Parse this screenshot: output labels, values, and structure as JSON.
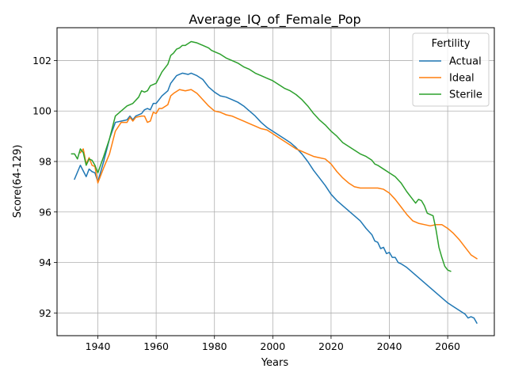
{
  "chart_data": {
    "type": "line",
    "title": "Average_IQ_of_Female_Pop",
    "xlabel": "Years",
    "ylabel": "Score(64-129)",
    "xlim": [
      1926,
      2076
    ],
    "ylim": [
      91.1,
      103.3
    ],
    "xticks": [
      1940,
      1960,
      1980,
      2000,
      2020,
      2040,
      2060
    ],
    "yticks": [
      92,
      94,
      96,
      98,
      100,
      102
    ],
    "grid": true,
    "legend": {
      "title": "Fertility",
      "placement": "top-right"
    },
    "series": [
      {
        "name": "Actual",
        "color": "#1f77b4",
        "points": [
          [
            1932,
            97.3
          ],
          [
            1934,
            97.85
          ],
          [
            1936,
            97.4
          ],
          [
            1937,
            97.7
          ],
          [
            1938,
            97.6
          ],
          [
            1939,
            97.55
          ],
          [
            1940,
            97.2
          ],
          [
            1942,
            98.0
          ],
          [
            1944,
            98.9
          ],
          [
            1946,
            99.55
          ],
          [
            1948,
            99.6
          ],
          [
            1950,
            99.65
          ],
          [
            1951,
            99.8
          ],
          [
            1952,
            99.65
          ],
          [
            1953,
            99.8
          ],
          [
            1955,
            99.9
          ],
          [
            1956,
            100.05
          ],
          [
            1957,
            100.1
          ],
          [
            1958,
            100.05
          ],
          [
            1959,
            100.3
          ],
          [
            1960,
            100.3
          ],
          [
            1962,
            100.6
          ],
          [
            1964,
            100.8
          ],
          [
            1965,
            101.1
          ],
          [
            1966,
            101.25
          ],
          [
            1967,
            101.4
          ],
          [
            1968,
            101.45
          ],
          [
            1969,
            101.5
          ],
          [
            1971,
            101.45
          ],
          [
            1972,
            101.5
          ],
          [
            1974,
            101.4
          ],
          [
            1976,
            101.25
          ],
          [
            1978,
            100.95
          ],
          [
            1980,
            100.75
          ],
          [
            1982,
            100.6
          ],
          [
            1984,
            100.55
          ],
          [
            1986,
            100.45
          ],
          [
            1988,
            100.35
          ],
          [
            1990,
            100.2
          ],
          [
            1992,
            100.0
          ],
          [
            1994,
            99.8
          ],
          [
            1996,
            99.55
          ],
          [
            1998,
            99.35
          ],
          [
            2000,
            99.2
          ],
          [
            2002,
            99.05
          ],
          [
            2004,
            98.9
          ],
          [
            2006,
            98.75
          ],
          [
            2008,
            98.55
          ],
          [
            2010,
            98.3
          ],
          [
            2012,
            98.0
          ],
          [
            2014,
            97.65
          ],
          [
            2016,
            97.35
          ],
          [
            2018,
            97.05
          ],
          [
            2020,
            96.7
          ],
          [
            2022,
            96.45
          ],
          [
            2024,
            96.25
          ],
          [
            2026,
            96.05
          ],
          [
            2028,
            95.85
          ],
          [
            2030,
            95.65
          ],
          [
            2032,
            95.35
          ],
          [
            2034,
            95.1
          ],
          [
            2035,
            94.85
          ],
          [
            2036,
            94.8
          ],
          [
            2037,
            94.55
          ],
          [
            2038,
            94.6
          ],
          [
            2039,
            94.35
          ],
          [
            2040,
            94.4
          ],
          [
            2041,
            94.2
          ],
          [
            2042,
            94.2
          ],
          [
            2043,
            94.0
          ],
          [
            2044,
            93.95
          ],
          [
            2046,
            93.8
          ],
          [
            2048,
            93.6
          ],
          [
            2050,
            93.4
          ],
          [
            2052,
            93.2
          ],
          [
            2054,
            93.0
          ],
          [
            2056,
            92.8
          ],
          [
            2058,
            92.6
          ],
          [
            2060,
            92.4
          ],
          [
            2062,
            92.25
          ],
          [
            2064,
            92.1
          ],
          [
            2066,
            91.95
          ],
          [
            2067,
            91.8
          ],
          [
            2068,
            91.85
          ],
          [
            2069,
            91.8
          ],
          [
            2070,
            91.6
          ]
        ]
      },
      {
        "name": "Ideal",
        "color": "#ff7f0e",
        "points": [
          [
            1934,
            98.35
          ],
          [
            1935,
            98.5
          ],
          [
            1936,
            97.9
          ],
          [
            1937,
            98.15
          ],
          [
            1938,
            97.85
          ],
          [
            1939,
            97.8
          ],
          [
            1940,
            97.15
          ],
          [
            1942,
            97.75
          ],
          [
            1944,
            98.3
          ],
          [
            1946,
            99.2
          ],
          [
            1948,
            99.55
          ],
          [
            1950,
            99.55
          ],
          [
            1951,
            99.75
          ],
          [
            1952,
            99.6
          ],
          [
            1953,
            99.75
          ],
          [
            1955,
            99.8
          ],
          [
            1956,
            99.8
          ],
          [
            1957,
            99.55
          ],
          [
            1958,
            99.6
          ],
          [
            1959,
            99.95
          ],
          [
            1960,
            99.9
          ],
          [
            1961,
            100.1
          ],
          [
            1962,
            100.1
          ],
          [
            1964,
            100.25
          ],
          [
            1965,
            100.6
          ],
          [
            1966,
            100.7
          ],
          [
            1968,
            100.85
          ],
          [
            1970,
            100.8
          ],
          [
            1972,
            100.85
          ],
          [
            1974,
            100.7
          ],
          [
            1976,
            100.45
          ],
          [
            1978,
            100.2
          ],
          [
            1980,
            100.0
          ],
          [
            1982,
            99.95
          ],
          [
            1984,
            99.85
          ],
          [
            1986,
            99.8
          ],
          [
            1988,
            99.7
          ],
          [
            1990,
            99.6
          ],
          [
            1992,
            99.5
          ],
          [
            1994,
            99.4
          ],
          [
            1996,
            99.3
          ],
          [
            1998,
            99.25
          ],
          [
            2000,
            99.1
          ],
          [
            2002,
            98.95
          ],
          [
            2004,
            98.8
          ],
          [
            2006,
            98.65
          ],
          [
            2008,
            98.5
          ],
          [
            2010,
            98.4
          ],
          [
            2012,
            98.3
          ],
          [
            2014,
            98.2
          ],
          [
            2016,
            98.15
          ],
          [
            2018,
            98.1
          ],
          [
            2020,
            97.9
          ],
          [
            2022,
            97.6
          ],
          [
            2024,
            97.35
          ],
          [
            2026,
            97.15
          ],
          [
            2028,
            97.0
          ],
          [
            2030,
            96.95
          ],
          [
            2032,
            96.95
          ],
          [
            2034,
            96.95
          ],
          [
            2036,
            96.95
          ],
          [
            2038,
            96.9
          ],
          [
            2040,
            96.75
          ],
          [
            2042,
            96.5
          ],
          [
            2044,
            96.2
          ],
          [
            2046,
            95.9
          ],
          [
            2048,
            95.65
          ],
          [
            2050,
            95.55
          ],
          [
            2052,
            95.5
          ],
          [
            2054,
            95.45
          ],
          [
            2056,
            95.5
          ],
          [
            2058,
            95.5
          ],
          [
            2060,
            95.35
          ],
          [
            2062,
            95.15
          ],
          [
            2064,
            94.9
          ],
          [
            2066,
            94.6
          ],
          [
            2068,
            94.3
          ],
          [
            2070,
            94.15
          ]
        ]
      },
      {
        "name": "Sterile",
        "color": "#2ca02c",
        "points": [
          [
            1931,
            98.3
          ],
          [
            1932,
            98.3
          ],
          [
            1933,
            98.1
          ],
          [
            1934,
            98.5
          ],
          [
            1935,
            98.35
          ],
          [
            1936,
            97.85
          ],
          [
            1937,
            98.1
          ],
          [
            1938,
            98.05
          ],
          [
            1939,
            97.85
          ],
          [
            1940,
            97.55
          ],
          [
            1942,
            98.2
          ],
          [
            1944,
            98.9
          ],
          [
            1946,
            99.8
          ],
          [
            1948,
            100.0
          ],
          [
            1950,
            100.2
          ],
          [
            1952,
            100.3
          ],
          [
            1954,
            100.55
          ],
          [
            1955,
            100.8
          ],
          [
            1956,
            100.75
          ],
          [
            1957,
            100.8
          ],
          [
            1958,
            101.0
          ],
          [
            1960,
            101.1
          ],
          [
            1962,
            101.55
          ],
          [
            1964,
            101.85
          ],
          [
            1965,
            102.2
          ],
          [
            1966,
            102.3
          ],
          [
            1967,
            102.45
          ],
          [
            1968,
            102.5
          ],
          [
            1969,
            102.6
          ],
          [
            1970,
            102.6
          ],
          [
            1972,
            102.75
          ],
          [
            1974,
            102.7
          ],
          [
            1976,
            102.6
          ],
          [
            1978,
            102.5
          ],
          [
            1979,
            102.4
          ],
          [
            1980,
            102.35
          ],
          [
            1982,
            102.25
          ],
          [
            1984,
            102.1
          ],
          [
            1986,
            102.0
          ],
          [
            1988,
            101.9
          ],
          [
            1990,
            101.75
          ],
          [
            1992,
            101.65
          ],
          [
            1994,
            101.5
          ],
          [
            1996,
            101.4
          ],
          [
            1998,
            101.3
          ],
          [
            2000,
            101.2
          ],
          [
            2002,
            101.05
          ],
          [
            2004,
            100.9
          ],
          [
            2006,
            100.8
          ],
          [
            2008,
            100.65
          ],
          [
            2010,
            100.45
          ],
          [
            2012,
            100.2
          ],
          [
            2014,
            99.9
          ],
          [
            2016,
            99.65
          ],
          [
            2018,
            99.45
          ],
          [
            2020,
            99.2
          ],
          [
            2022,
            99.0
          ],
          [
            2024,
            98.75
          ],
          [
            2026,
            98.6
          ],
          [
            2028,
            98.45
          ],
          [
            2030,
            98.3
          ],
          [
            2032,
            98.2
          ],
          [
            2034,
            98.05
          ],
          [
            2035,
            97.9
          ],
          [
            2036,
            97.85
          ],
          [
            2038,
            97.7
          ],
          [
            2040,
            97.55
          ],
          [
            2042,
            97.4
          ],
          [
            2044,
            97.15
          ],
          [
            2046,
            96.8
          ],
          [
            2048,
            96.5
          ],
          [
            2049,
            96.35
          ],
          [
            2050,
            96.5
          ],
          [
            2051,
            96.45
          ],
          [
            2052,
            96.25
          ],
          [
            2053,
            95.95
          ],
          [
            2054,
            95.9
          ],
          [
            2055,
            95.85
          ],
          [
            2056,
            95.3
          ],
          [
            2057,
            94.6
          ],
          [
            2058,
            94.2
          ],
          [
            2059,
            93.85
          ],
          [
            2060,
            93.7
          ],
          [
            2061,
            93.65
          ]
        ]
      }
    ]
  }
}
